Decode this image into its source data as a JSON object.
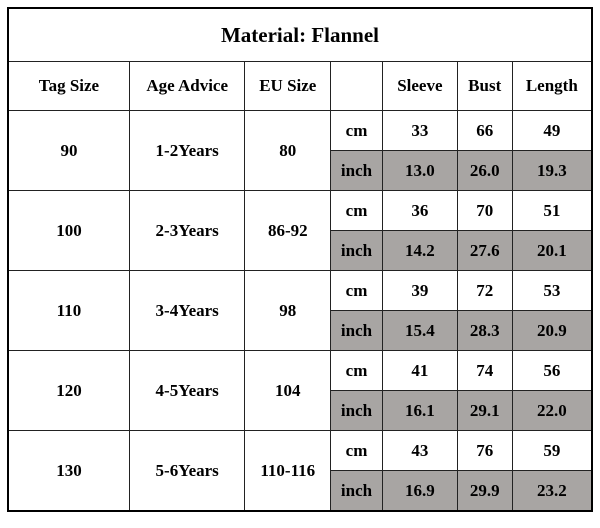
{
  "title": "Material: Flannel",
  "headers": {
    "tag": "Tag Size",
    "age": "Age Advice",
    "eu": "EU Size",
    "sleeve": "Sleeve",
    "bust": "Bust",
    "length": "Length"
  },
  "rows": [
    {
      "tag": "90",
      "age": "1-2Years",
      "eu": "80",
      "cm": {
        "unit": "cm",
        "values": [
          "33",
          "66",
          "49"
        ]
      },
      "inch": {
        "unit": "inch",
        "values": [
          "13.0",
          "26.0",
          "19.3"
        ]
      }
    },
    {
      "tag": "100",
      "age": "2-3Years",
      "eu": "86-92",
      "cm": {
        "unit": "cm",
        "values": [
          "36",
          "70",
          "51"
        ]
      },
      "inch": {
        "unit": "inch",
        "values": [
          "14.2",
          "27.6",
          "20.1"
        ]
      }
    },
    {
      "tag": "110",
      "age": "3-4Years",
      "eu": "98",
      "cm": {
        "unit": "cm",
        "values": [
          "39",
          "72",
          "53"
        ]
      },
      "inch": {
        "unit": "inch",
        "values": [
          "15.4",
          "28.3",
          "20.9"
        ]
      }
    },
    {
      "tag": "120",
      "age": "4-5Years",
      "eu": "104",
      "cm": {
        "unit": "cm",
        "values": [
          "41",
          "74",
          "56"
        ]
      },
      "inch": {
        "unit": "inch",
        "values": [
          "16.1",
          "29.1",
          "22.0"
        ]
      }
    },
    {
      "tag": "130",
      "age": "5-6Years",
      "eu": "110-116",
      "cm": {
        "unit": "cm",
        "values": [
          "43",
          "76",
          "59"
        ]
      },
      "inch": {
        "unit": "inch",
        "values": [
          "16.9",
          "29.9",
          "23.2"
        ]
      }
    }
  ]
}
